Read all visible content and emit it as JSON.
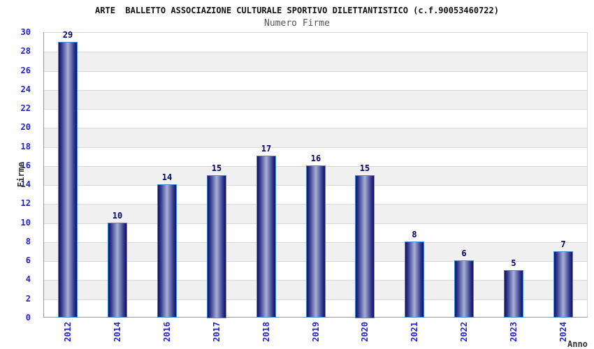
{
  "chart_data": {
    "type": "bar",
    "title": "ARTE  BALLETTO ASSOCIAZIONE CULTURALE SPORTIVO DILETTANTISTICO (c.f.90053460722)",
    "subtitle": "Numero Firme",
    "categories": [
      "2012",
      "2014",
      "2016",
      "2017",
      "2018",
      "2019",
      "2020",
      "2021",
      "2022",
      "2023",
      "2024"
    ],
    "values": [
      29,
      10,
      14,
      15,
      17,
      16,
      15,
      8,
      6,
      5,
      7
    ],
    "xlabel": "Anno",
    "ylabel": "Firme",
    "ylim": [
      0,
      30
    ],
    "ytick_step": 2,
    "grid": true,
    "legend_position": "none",
    "band_interval": 2,
    "colors": {
      "bar_border": "#3f8fe0",
      "bar_gradient_edge": "#10105e",
      "bar_gradient_middark": "#32388c",
      "bar_gradient_light": "#a8b0d6",
      "tick_label": "#2222cc",
      "value_label": "#000066",
      "gridline": "#d9d9d9",
      "band": "#f0f0f0",
      "plot_frame": "#d5d5d5",
      "axis_line": "#9a9a9a",
      "title": "#111111",
      "subtitle": "#555555",
      "axis_title": "#333333",
      "background": "#ffffff"
    }
  }
}
